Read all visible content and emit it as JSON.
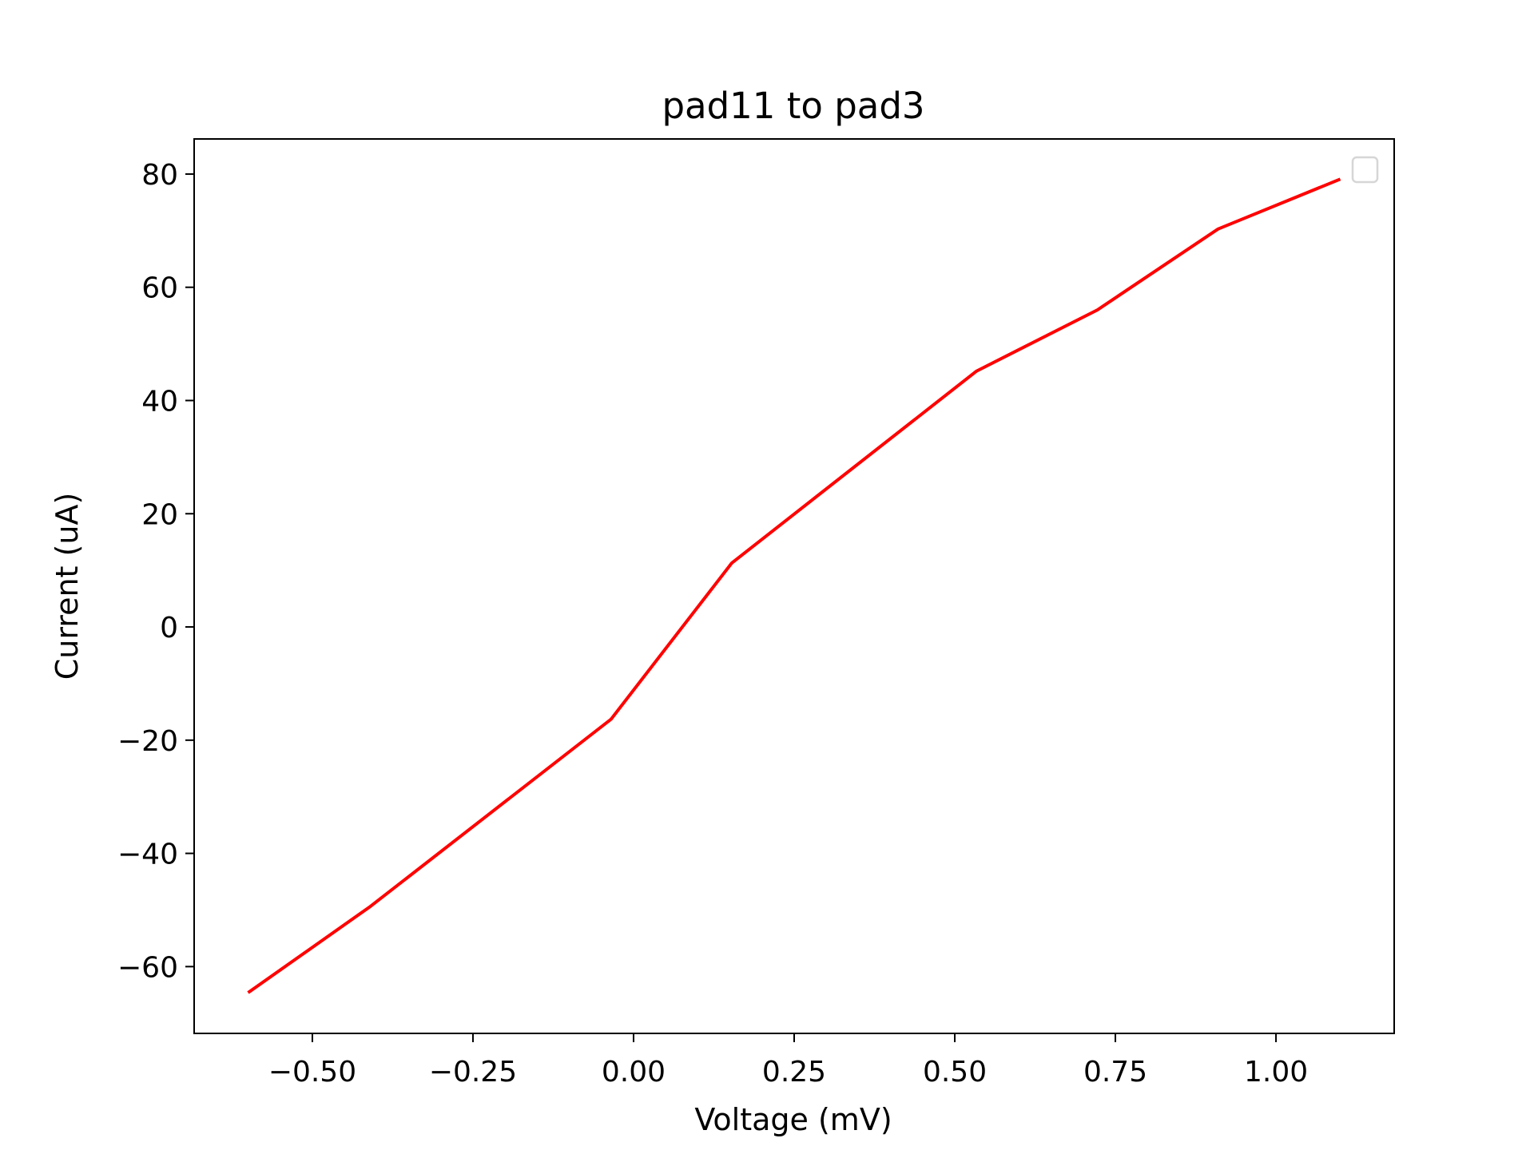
{
  "chart_data": {
    "type": "line",
    "title": "pad11 to pad3",
    "xlabel": "Voltage (mV)",
    "ylabel": "Current (uA)",
    "xlim": [
      -0.684,
      1.184
    ],
    "ylim": [
      -71.8,
      86.2
    ],
    "xticks": [
      -0.5,
      -0.25,
      0.0,
      0.25,
      0.5,
      0.75,
      1.0
    ],
    "xtick_labels": [
      "−0.50",
      "−0.25",
      "0.00",
      "0.25",
      "0.50",
      "0.75",
      "1.00"
    ],
    "yticks": [
      -60,
      -40,
      -20,
      0,
      20,
      40,
      60,
      80
    ],
    "ytick_labels": [
      "−60",
      "−40",
      "−20",
      "0",
      "20",
      "40",
      "60",
      "80"
    ],
    "grid": false,
    "legend": "upper-right, empty",
    "series": [
      {
        "color": "#ff0000",
        "x": [
          -0.6,
          -0.41,
          -0.035,
          0.153,
          0.534,
          0.722,
          0.91,
          1.1
        ],
        "y": [
          -64.6,
          -49.4,
          -16.3,
          11.3,
          45.2,
          56.0,
          70.3,
          79.1
        ]
      }
    ]
  }
}
